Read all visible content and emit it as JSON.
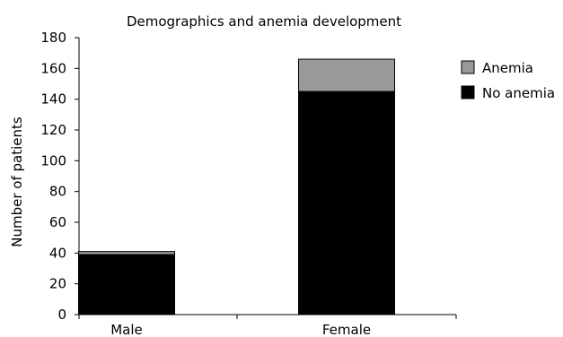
{
  "chart_data": {
    "type": "bar",
    "stacked": true,
    "title": "Demographics and anemia development",
    "xlabel": "",
    "ylabel": "Number of patients",
    "categories": [
      "Male",
      "Female"
    ],
    "series": [
      {
        "name": "No anemia",
        "values": [
          39,
          145
        ],
        "color": "#000000"
      },
      {
        "name": "Anemia",
        "values": [
          2,
          21
        ],
        "color": "#999999"
      }
    ],
    "ylim": [
      0,
      180
    ],
    "yticks": [
      0,
      20,
      40,
      60,
      80,
      100,
      120,
      140,
      160,
      180
    ],
    "grid": false,
    "legend_position": "top-right",
    "legend_order": [
      "Anemia",
      "No anemia"
    ]
  }
}
